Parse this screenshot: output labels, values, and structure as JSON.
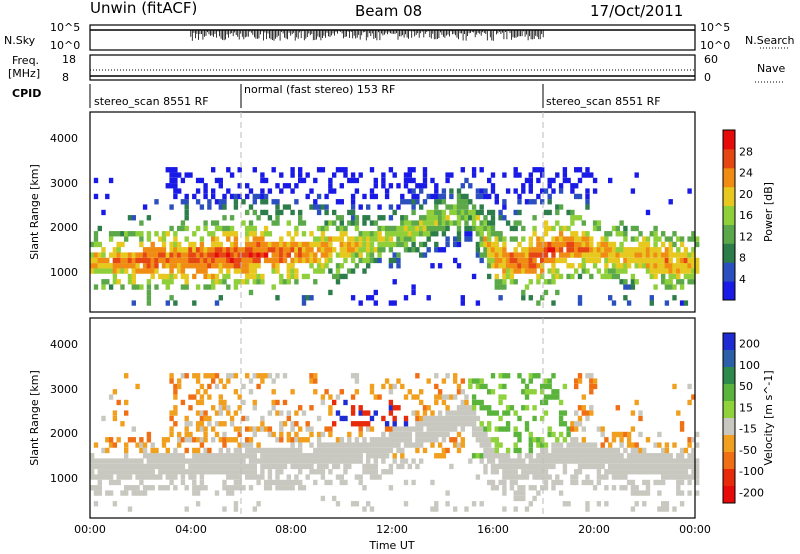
{
  "header": {
    "radar": "Unwin (fitACF)",
    "beam": "Beam 08",
    "date": "17/Oct/2011"
  },
  "nsky_panel": {
    "left_label": "N.Sky",
    "left_ticks": [
      "10^5",
      "10^0"
    ],
    "right_ticks": [
      "10^5",
      "10^0"
    ],
    "right_label": "N.Search"
  },
  "freq_panel": {
    "left_label_1": "Freq.",
    "left_label_2": "[MHz]",
    "left_ticks": [
      "18",
      "8"
    ],
    "right_ticks": [
      "60",
      "0"
    ],
    "right_label": "Nave"
  },
  "cpid": {
    "label": "CPID",
    "segments": [
      {
        "text": "stereo_scan 8551 RF",
        "start_hour": 0
      },
      {
        "text": "normal (fast stereo) 153 RF",
        "start_hour": 6
      },
      {
        "text": "stereo_scan 8551 RF",
        "start_hour": 18
      }
    ]
  },
  "colors": {
    "power_scale": [
      "#1a1ae6",
      "#2c4fbf",
      "#2d7d4a",
      "#5aa84a",
      "#8fcf3a",
      "#e6c81e",
      "#f08c14",
      "#e64614",
      "#e60a0a"
    ],
    "velocity_scale": [
      "#1e2ad2",
      "#2c5fa8",
      "#2e8a4a",
      "#5ab43c",
      "#8fd23c",
      "#c8c8c0",
      "#f0a01e",
      "#f06e14",
      "#e62a0a",
      "#e60a0a"
    ],
    "ground_scatter": "#c8c8c0"
  },
  "chart_data": [
    {
      "type": "heatmap",
      "title": "",
      "ylabel": "Slant Range [km]",
      "xlabel": "",
      "ylim": [
        0,
        4500
      ],
      "yticks": [
        "1000",
        "2000",
        "3000",
        "4000"
      ],
      "colorbar": {
        "label": "Power [dB]",
        "ticks": [
          "4",
          "8",
          "12",
          "16",
          "20",
          "24",
          "28"
        ],
        "range": [
          0,
          30
        ]
      },
      "x_hours": [
        0,
        1,
        2,
        3,
        4,
        5,
        6,
        7,
        8,
        9,
        10,
        11,
        12,
        13,
        14,
        15,
        16,
        17,
        18,
        19,
        20,
        21,
        22,
        23,
        24
      ],
      "main_band_center_km": [
        1150,
        1150,
        1150,
        1180,
        1200,
        1230,
        1270,
        1300,
        1330,
        1380,
        1450,
        1560,
        1700,
        1900,
        2100,
        2300,
        1200,
        1100,
        1300,
        1500,
        1350,
        1250,
        1200,
        1150,
        1150
      ],
      "main_band_power_db": [
        20,
        22,
        24,
        24,
        25,
        25,
        26,
        25,
        24,
        22,
        20,
        18,
        16,
        16,
        15,
        14,
        22,
        24,
        26,
        24,
        22,
        20,
        22,
        22,
        20
      ]
    },
    {
      "type": "heatmap",
      "title": "",
      "ylabel": "Slant Range [km]",
      "xlabel": "Time UT",
      "ylim": [
        0,
        4500
      ],
      "yticks": [
        "1000",
        "2000",
        "3000",
        "4000"
      ],
      "xticks": [
        "00:00",
        "04:00",
        "08:00",
        "12:00",
        "16:00",
        "20:00",
        "00:00"
      ],
      "colorbar": {
        "label": "Velocity [m s^-1]",
        "ticks": [
          "200",
          "100",
          "50",
          "15",
          "-15",
          "-50",
          "-100",
          "-200"
        ],
        "range": [
          -250,
          250
        ]
      },
      "x_hours": [
        0,
        1,
        2,
        3,
        4,
        5,
        6,
        7,
        8,
        9,
        10,
        11,
        12,
        13,
        14,
        15,
        16,
        17,
        18,
        19,
        20,
        21,
        22,
        23,
        24
      ],
      "main_band_center_km": [
        1150,
        1150,
        1150,
        1180,
        1200,
        1230,
        1270,
        1300,
        1330,
        1380,
        1450,
        1560,
        1700,
        1900,
        2100,
        2300,
        1200,
        1100,
        1300,
        1500,
        1350,
        1250,
        1200,
        1150,
        1150
      ]
    }
  ]
}
